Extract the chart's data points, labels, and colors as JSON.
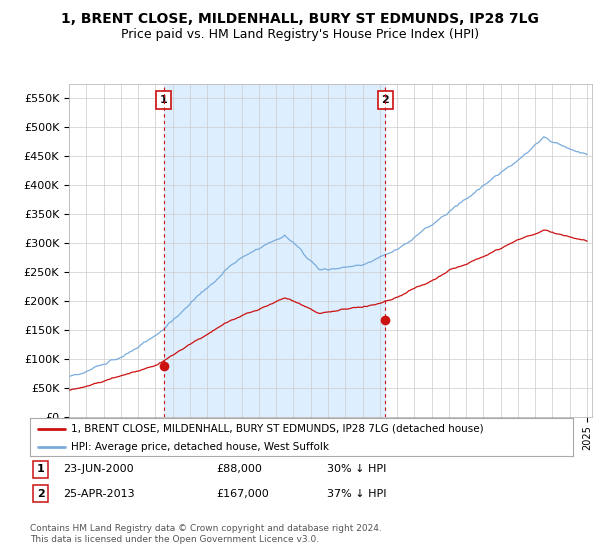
{
  "title": "1, BRENT CLOSE, MILDENHALL, BURY ST EDMUNDS, IP28 7LG",
  "subtitle": "Price paid vs. HM Land Registry's House Price Index (HPI)",
  "ylim": [
    0,
    575000
  ],
  "yticks": [
    0,
    50000,
    100000,
    150000,
    200000,
    250000,
    300000,
    350000,
    400000,
    450000,
    500000,
    550000
  ],
  "ytick_labels": [
    "£0",
    "£50K",
    "£100K",
    "£150K",
    "£200K",
    "£250K",
    "£300K",
    "£350K",
    "£400K",
    "£450K",
    "£500K",
    "£550K"
  ],
  "hpi_color": "#7aacdc",
  "price_color": "#cc1111",
  "shade_color": "#ddeeff",
  "sale1_date": 2000.48,
  "sale1_price": 88000,
  "sale2_date": 2013.32,
  "sale2_price": 167000,
  "legend_line1": "1, BRENT CLOSE, MILDENHALL, BURY ST EDMUNDS, IP28 7LG (detached house)",
  "legend_line2": "HPI: Average price, detached house, West Suffolk",
  "table_row1": [
    "1",
    "23-JUN-2000",
    "£88,000",
    "30% ↓ HPI"
  ],
  "table_row2": [
    "2",
    "25-APR-2013",
    "£167,000",
    "37% ↓ HPI"
  ],
  "footnote1": "Contains HM Land Registry data © Crown copyright and database right 2024.",
  "footnote2": "This data is licensed under the Open Government Licence v3.0.",
  "background_color": "#ffffff",
  "grid_color": "#cccccc",
  "title_fontsize": 10,
  "subtitle_fontsize": 9
}
